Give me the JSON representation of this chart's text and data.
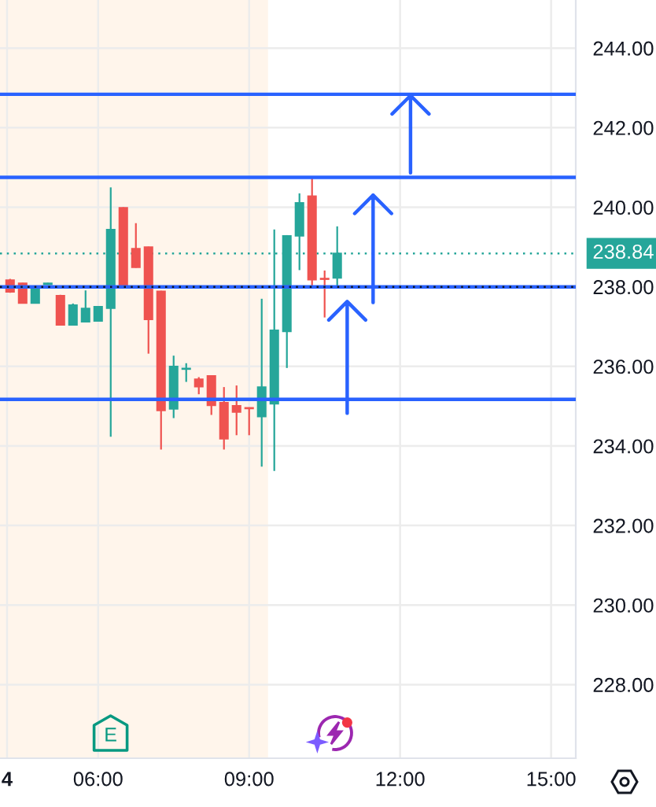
{
  "chart_data": {
    "type": "candlestick",
    "x": [
      4.25,
      4.5,
      4.75,
      5.0,
      5.25,
      5.5,
      5.75,
      6.0,
      6.25,
      6.5,
      6.75,
      7.0,
      7.25,
      7.5,
      7.75,
      8.0,
      8.25,
      8.5,
      8.75,
      9.0,
      9.25,
      9.5,
      9.75,
      10.0,
      10.25,
      10.5,
      10.75
    ],
    "ohlc": [
      [
        238.17,
        238.2,
        237.85,
        237.87
      ],
      [
        238.09,
        238.1,
        237.58,
        237.59
      ],
      [
        237.59,
        237.97,
        237.58,
        237.96
      ],
      [
        238.06,
        238.1,
        238.05,
        238.09
      ],
      [
        237.78,
        237.8,
        237.03,
        237.04
      ],
      [
        237.04,
        237.58,
        237.03,
        237.54
      ],
      [
        237.12,
        237.91,
        237.11,
        237.46
      ],
      [
        237.14,
        237.5,
        237.13,
        237.5
      ],
      [
        237.46,
        240.5,
        234.23,
        239.44
      ],
      [
        239.99,
        240.0,
        237.96,
        237.97
      ],
      [
        238.96,
        239.6,
        238.48,
        238.49
      ],
      [
        239.0,
        239.01,
        236.32,
        237.18
      ],
      [
        237.89,
        237.9,
        233.91,
        234.89
      ],
      [
        234.93,
        236.27,
        234.7,
        236.0
      ],
      [
        235.93,
        236.08,
        235.61,
        235.95
      ],
      [
        235.68,
        235.73,
        235.3,
        235.49
      ],
      [
        235.76,
        235.77,
        234.78,
        235.02
      ],
      [
        235.09,
        235.48,
        233.91,
        234.18
      ],
      [
        235.01,
        235.52,
        234.27,
        234.85
      ],
      [
        234.96,
        234.97,
        234.27,
        234.94
      ],
      [
        234.74,
        237.7,
        233.48,
        235.48
      ],
      [
        235.06,
        239.44,
        233.37,
        236.91
      ],
      [
        236.88,
        239.3,
        235.96,
        239.28
      ],
      [
        239.28,
        240.35,
        238.42,
        240.11
      ],
      [
        240.28,
        240.73,
        237.99,
        238.18
      ],
      [
        238.21,
        238.41,
        237.23,
        238.19
      ],
      [
        238.22,
        239.52,
        237.99,
        238.84
      ]
    ],
    "colors": [
      "#ef5350",
      "#ef5350",
      "#26a69a",
      "#26a69a",
      "#ef5350",
      "#26a69a",
      "#26a69a",
      "#26a69a",
      "#26a69a",
      "#ef5350",
      "#ef5350",
      "#ef5350",
      "#ef5350",
      "#26a69a",
      "#26a69a",
      "#ef5350",
      "#ef5350",
      "#ef5350",
      "#ef5350",
      "#ef5350",
      "#26a69a",
      "#26a69a",
      "#26a69a",
      "#26a69a",
      "#ef5350",
      "#ef5350",
      "#26a69a"
    ],
    "xlim": [
      4.05,
      15.49
    ],
    "xticks": [
      {
        "value": 4.19,
        "label": "4"
      },
      {
        "value": 6,
        "label": "06:00"
      },
      {
        "value": 9,
        "label": "09:00"
      },
      {
        "value": 12,
        "label": "12:00"
      },
      {
        "value": 15,
        "label": "15:00"
      }
    ],
    "ylim": [
      226.15,
      245.21
    ],
    "yticks": [
      {
        "value": 228,
        "label": "228.00"
      },
      {
        "value": 230,
        "label": "230.00"
      },
      {
        "value": 232,
        "label": "232.00"
      },
      {
        "value": 234,
        "label": "234.00"
      },
      {
        "value": 236,
        "label": "236.00"
      },
      {
        "value": 238,
        "label": "238.00"
      },
      {
        "value": 240,
        "label": "240.00"
      },
      {
        "value": 242,
        "label": "242.00"
      },
      {
        "value": 244,
        "label": "244.00"
      }
    ],
    "grid": true,
    "bands": [
      {
        "axis": "x",
        "from": 4.05,
        "to": 9.375,
        "color": "#fff5eb"
      }
    ],
    "ref_lines": [
      {
        "axis": "y",
        "value": 242.84,
        "color": "#2962ff",
        "line_style": "solid"
      },
      {
        "axis": "y",
        "value": 240.75,
        "color": "#2962ff",
        "line_style": "solid"
      },
      {
        "axis": "y",
        "value": 238.0,
        "color": "#2962ff",
        "line_style": "solid"
      },
      {
        "axis": "y",
        "value": 235.17,
        "color": "#2962ff",
        "line_style": "solid"
      },
      {
        "axis": "y",
        "value": 238.0,
        "color": "#131722",
        "line_style": "dotted"
      },
      {
        "axis": "y",
        "value": 238.84,
        "label": "238.84",
        "color": "#26a69a",
        "line_style": "dotted"
      }
    ],
    "annotations": [
      "E"
    ]
  }
}
